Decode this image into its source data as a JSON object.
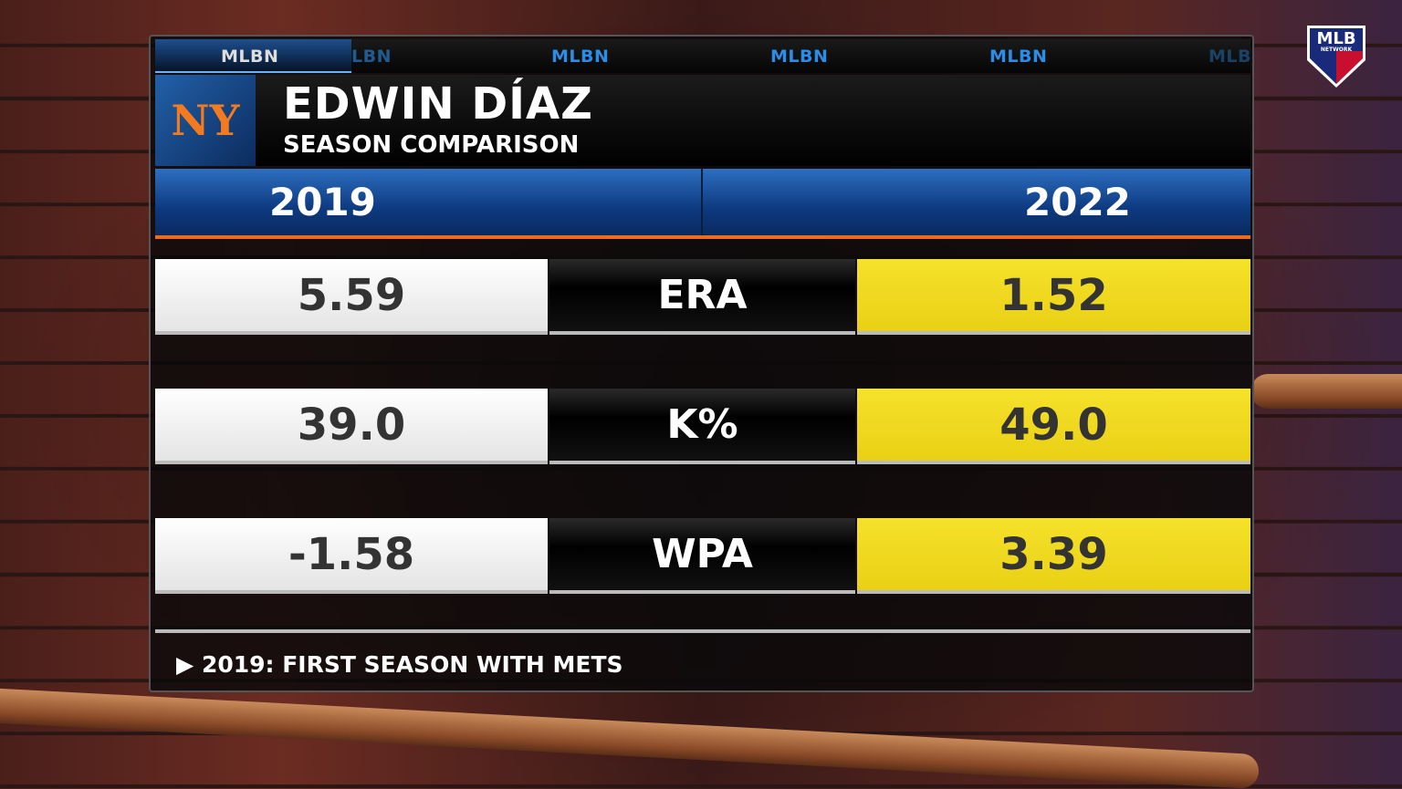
{
  "ticker": {
    "items": [
      "MLBN",
      "LBN",
      "MLBN",
      "MLBN",
      "MLBN",
      "MLB"
    ]
  },
  "header": {
    "team_logo": "NY",
    "player": "EDWIN DÍAZ",
    "subtitle": "SEASON COMPARISON"
  },
  "years": {
    "left": "2019",
    "right": "2022"
  },
  "rows": [
    {
      "stat": "ERA",
      "left": "5.59",
      "right": "1.52"
    },
    {
      "stat": "K%",
      "left": "39.0",
      "right": "49.0"
    },
    {
      "stat": "WPA",
      "left": "-1.58",
      "right": "3.39"
    }
  ],
  "footer": {
    "arrow": "▶",
    "note": "2019: FIRST SEASON WITH METS"
  },
  "network_logo": {
    "text": "MLB",
    "sub": "NETWORK"
  },
  "colors": {
    "blue": "#1d5aa8",
    "orange": "#f06a1a",
    "yellow": "#f0d820",
    "mets_orange": "#f47a20"
  }
}
